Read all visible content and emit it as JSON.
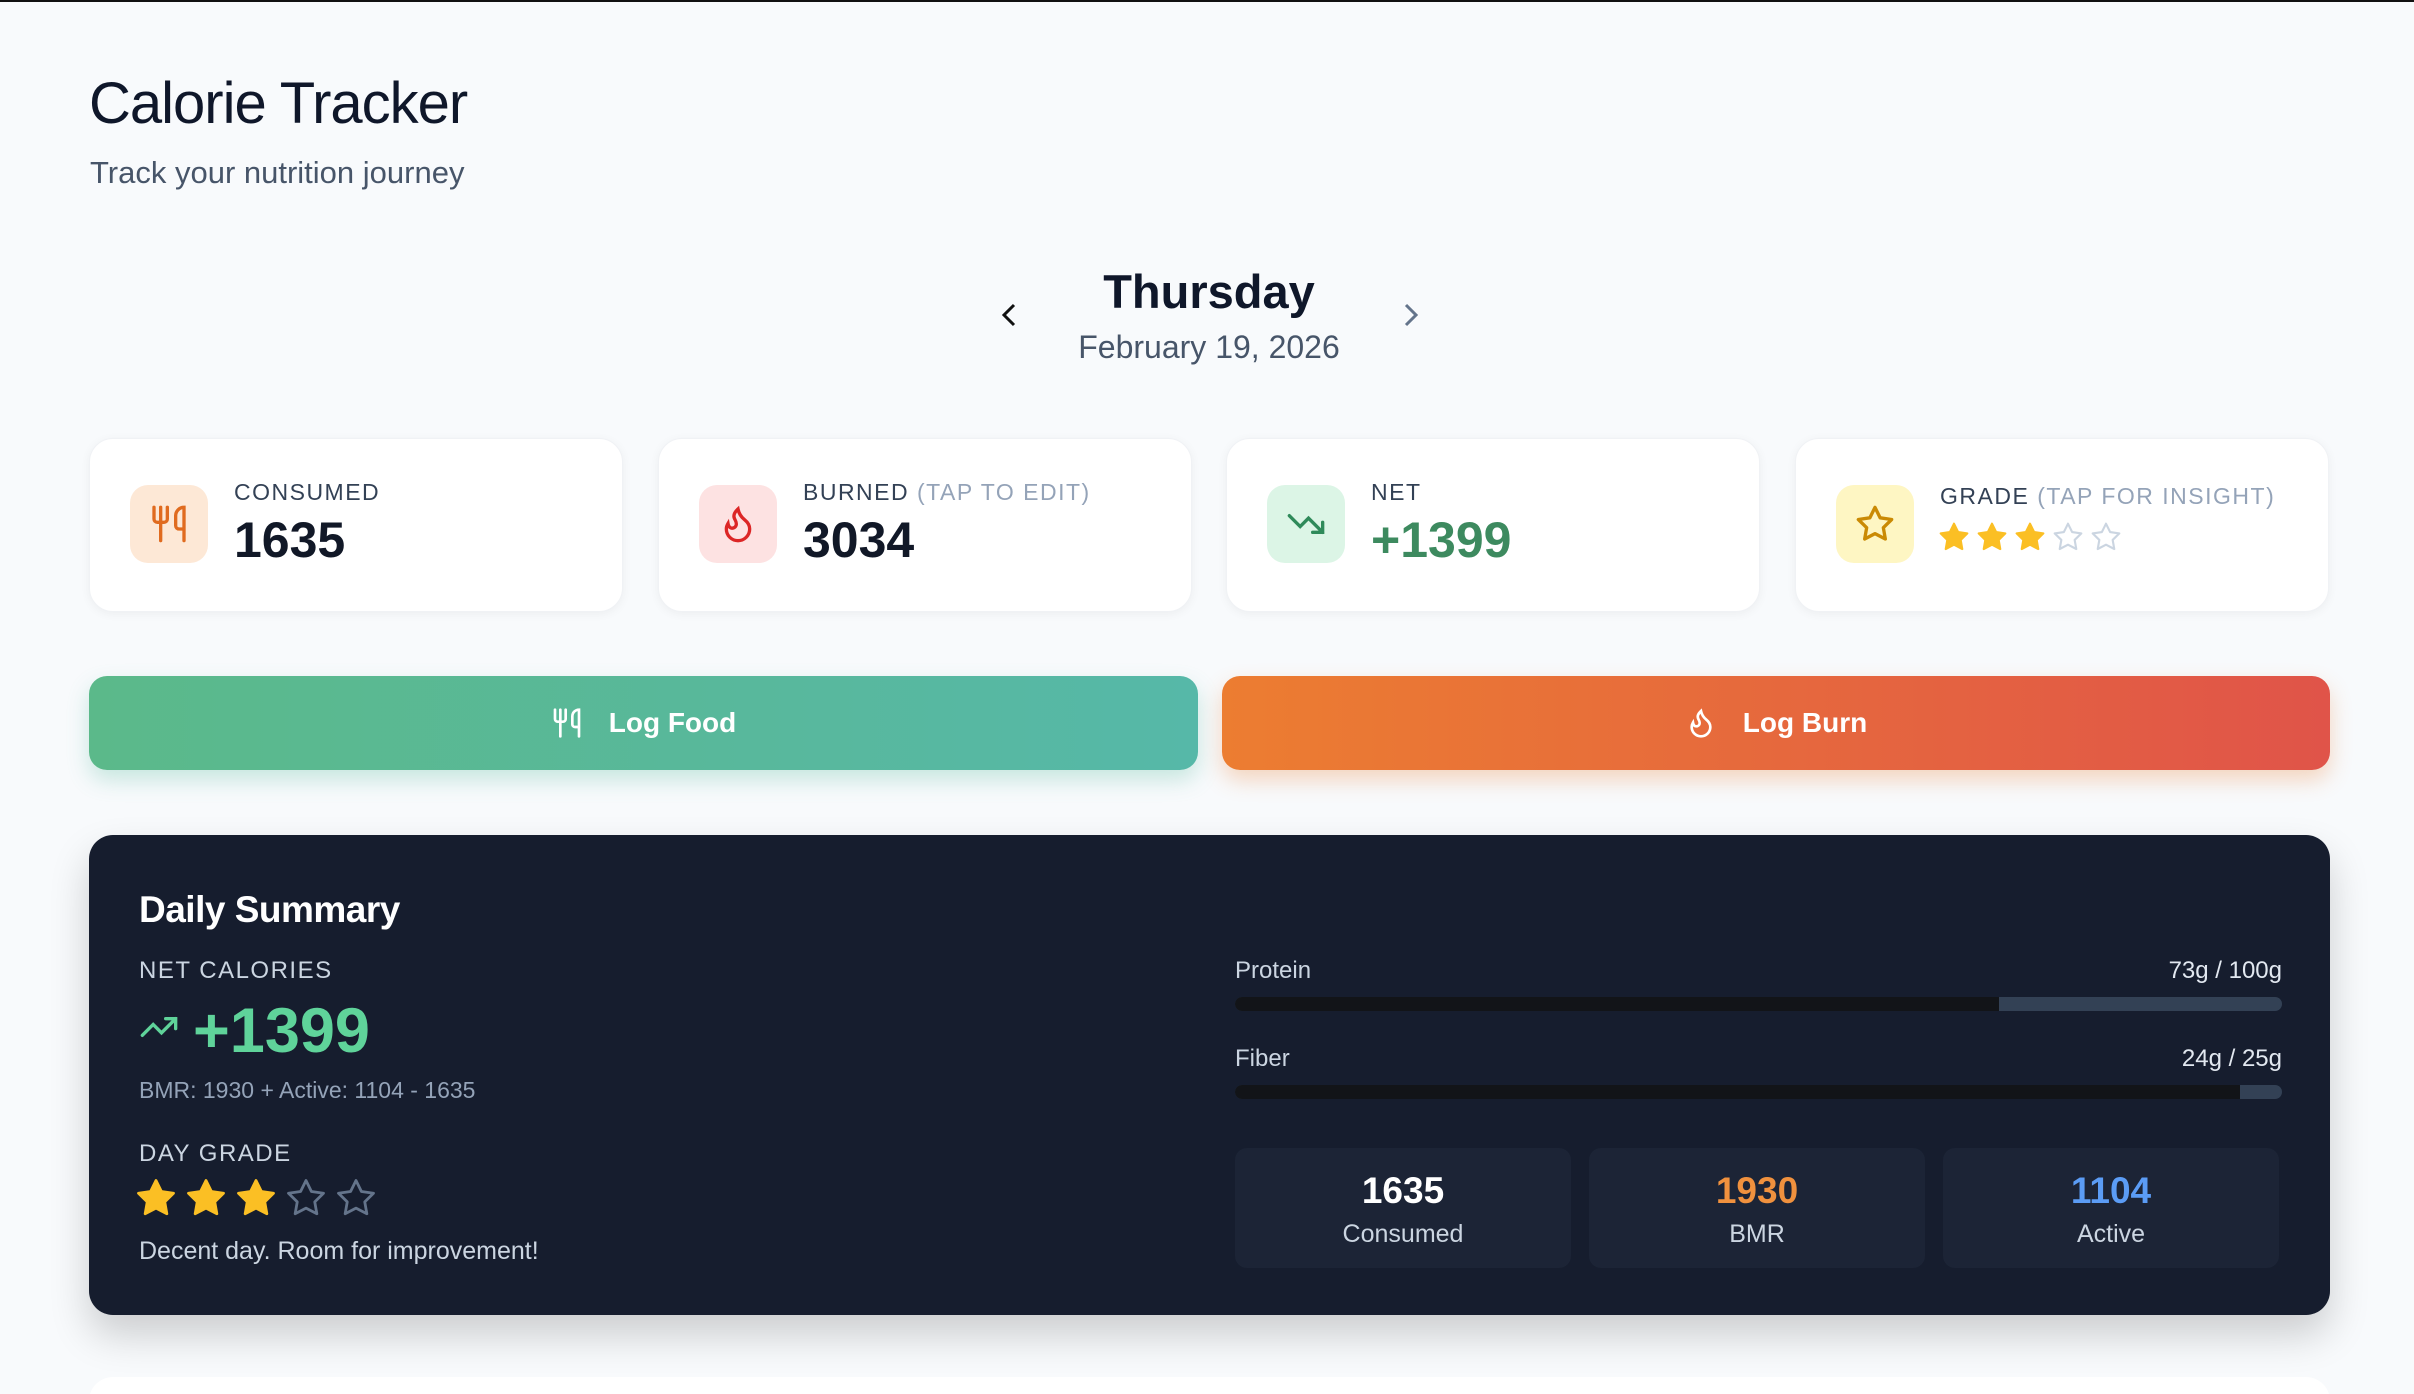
{
  "header": {
    "title": "Calorie Tracker",
    "subtitle": "Track your nutrition journey"
  },
  "date": {
    "day": "Thursday",
    "date": "February 19, 2026"
  },
  "grade": {
    "rating": 3,
    "max": 5
  },
  "stats": [
    {
      "label": "CONSUMED",
      "value": "1635"
    },
    {
      "label": "BURNED",
      "hint": "(TAP TO EDIT)",
      "value": "3034"
    },
    {
      "label": "NET",
      "value": "+1399"
    },
    {
      "label": "GRADE",
      "hint": "(TAP FOR INSIGHT)"
    }
  ],
  "actions": {
    "log_food": "Log Food",
    "log_burn": "Log Burn"
  },
  "summary": {
    "title": "Daily Summary",
    "net_label": "NET CALORIES",
    "net_value": "+1399",
    "formula": "BMR: 1930 + Active: 1104 - 1635",
    "grade_label": "DAY GRADE",
    "grade_text": "Decent day. Room for improvement!",
    "macros": [
      {
        "name": "Protein",
        "text": "73g / 100g",
        "value": 73,
        "target": 100
      },
      {
        "name": "Fiber",
        "text": "24g / 25g",
        "value": 24,
        "target": 25
      }
    ],
    "totals": [
      {
        "value": "1635",
        "label": "Consumed"
      },
      {
        "value": "1930",
        "label": "BMR"
      },
      {
        "value": "1104",
        "label": "Active"
      }
    ]
  }
}
